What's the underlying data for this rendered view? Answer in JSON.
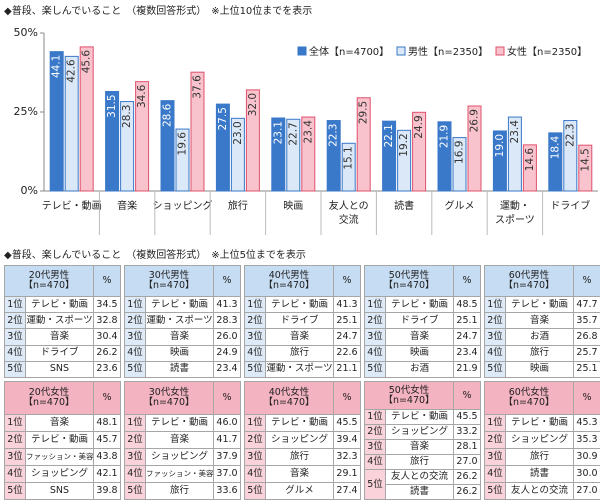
{
  "chart_data": {
    "type": "bar",
    "title": "◆普段、楽しんでいること　（複数回答形式）　※上位10位までを表示",
    "categories": [
      "テレビ・動画",
      "音楽",
      "ショッピング",
      "旅行",
      "映画",
      "友人との\n交流",
      "読書",
      "グルメ",
      "運動・\nスポーツ",
      "ドライブ"
    ],
    "series": [
      {
        "name": "全体【n=4700】",
        "color": "#3a78c9",
        "stroke": "#3a78c9",
        "label_color": "#ffffff",
        "values": [
          44.1,
          31.5,
          28.6,
          27.5,
          23.1,
          22.3,
          22.1,
          21.9,
          19.0,
          18.4
        ],
        "value_labels": [
          "44.1",
          "31.5",
          "28.6",
          "27.5",
          "23.1",
          "22.3",
          "22.1",
          "21.9",
          "19.0",
          "18.4"
        ]
      },
      {
        "name": "男性【n=2350】",
        "color": "#dbe8f7",
        "stroke": "#3a78c9",
        "label_color": "#333333",
        "values": [
          42.6,
          28.3,
          19.6,
          23.0,
          22.7,
          15.1,
          19.2,
          16.9,
          23.4,
          22.3
        ],
        "value_labels": [
          "42.6",
          "28.3",
          "19.6",
          "23.0",
          "22.7",
          "15.1",
          "19.2",
          "16.9",
          "23.4",
          "22.3"
        ]
      },
      {
        "name": "女性【n=2350】",
        "color": "#f8c3cd",
        "stroke": "#e0506c",
        "label_color": "#333333",
        "values": [
          45.6,
          34.6,
          37.6,
          32.0,
          23.4,
          29.5,
          24.9,
          26.9,
          14.6,
          14.5
        ],
        "value_labels": [
          "45.6",
          "34.6",
          "37.6",
          "32.0",
          "23.4",
          "29.5",
          "24.9",
          "26.9",
          "14.6",
          "14.5"
        ]
      }
    ],
    "ylim": [
      0,
      50
    ],
    "yticks": [
      {
        "value": 0,
        "label": "0%"
      },
      {
        "value": 25,
        "label": "25%"
      },
      {
        "value": 50,
        "label": "50%"
      }
    ],
    "grid": false,
    "legend": "top-right"
  },
  "tables_section": {
    "title": "◆普段、楽しんでいること　（複数回答形式）　※上位5位までを表示",
    "tables": [
      {
        "header": "20代男性\n【n=470】",
        "unit": "%",
        "gender": "male",
        "rows": [
          {
            "rank": "1位",
            "entries": [
              {
                "item": "テレビ・動画",
                "value": "34.5"
              }
            ]
          },
          {
            "rank": "2位",
            "entries": [
              {
                "item": "運動・スポーツ",
                "value": "32.8"
              }
            ]
          },
          {
            "rank": "3位",
            "entries": [
              {
                "item": "音楽",
                "value": "30.4"
              }
            ]
          },
          {
            "rank": "4位",
            "entries": [
              {
                "item": "ドライブ",
                "value": "26.2"
              }
            ]
          },
          {
            "rank": "5位",
            "entries": [
              {
                "item": "SNS",
                "value": "23.6"
              }
            ]
          }
        ]
      },
      {
        "header": "30代男性\n【n=470】",
        "unit": "%",
        "gender": "male",
        "rows": [
          {
            "rank": "1位",
            "entries": [
              {
                "item": "テレビ・動画",
                "value": "41.3"
              }
            ]
          },
          {
            "rank": "2位",
            "entries": [
              {
                "item": "運動・スポーツ",
                "value": "28.3"
              }
            ]
          },
          {
            "rank": "3位",
            "entries": [
              {
                "item": "音楽",
                "value": "26.0"
              }
            ]
          },
          {
            "rank": "4位",
            "entries": [
              {
                "item": "映画",
                "value": "24.9"
              }
            ]
          },
          {
            "rank": "5位",
            "entries": [
              {
                "item": "読書",
                "value": "23.4"
              }
            ]
          }
        ]
      },
      {
        "header": "40代男性\n【n=470】",
        "unit": "%",
        "gender": "male",
        "rows": [
          {
            "rank": "1位",
            "entries": [
              {
                "item": "テレビ・動画",
                "value": "41.3"
              }
            ]
          },
          {
            "rank": "2位",
            "entries": [
              {
                "item": "ドライブ",
                "value": "25.1"
              }
            ]
          },
          {
            "rank": "3位",
            "entries": [
              {
                "item": "音楽",
                "value": "24.7"
              }
            ]
          },
          {
            "rank": "4位",
            "entries": [
              {
                "item": "旅行",
                "value": "22.6"
              }
            ]
          },
          {
            "rank": "5位",
            "entries": [
              {
                "item": "運動・スポーツ",
                "value": "21.1"
              }
            ]
          }
        ]
      },
      {
        "header": "50代男性\n【n=470】",
        "unit": "%",
        "gender": "male",
        "rows": [
          {
            "rank": "1位",
            "entries": [
              {
                "item": "テレビ・動画",
                "value": "48.5"
              }
            ]
          },
          {
            "rank": "2位",
            "entries": [
              {
                "item": "ドライブ",
                "value": "25.1"
              }
            ]
          },
          {
            "rank": "3位",
            "entries": [
              {
                "item": "音楽",
                "value": "24.7"
              }
            ]
          },
          {
            "rank": "4位",
            "entries": [
              {
                "item": "映画",
                "value": "23.4"
              }
            ]
          },
          {
            "rank": "5位",
            "entries": [
              {
                "item": "お酒",
                "value": "21.9"
              }
            ]
          }
        ]
      },
      {
        "header": "60代男性\n【n=470】",
        "unit": "%",
        "gender": "male",
        "rows": [
          {
            "rank": "1位",
            "entries": [
              {
                "item": "テレビ・動画",
                "value": "47.7"
              }
            ]
          },
          {
            "rank": "2位",
            "entries": [
              {
                "item": "音楽",
                "value": "35.7"
              }
            ]
          },
          {
            "rank": "3位",
            "entries": [
              {
                "item": "お酒",
                "value": "26.8"
              }
            ]
          },
          {
            "rank": "4位",
            "entries": [
              {
                "item": "旅行",
                "value": "25.7"
              }
            ]
          },
          {
            "rank": "5位",
            "entries": [
              {
                "item": "映画",
                "value": "25.1"
              }
            ]
          }
        ]
      },
      {
        "header": "20代女性\n【n=470】",
        "unit": "%",
        "gender": "female",
        "rows": [
          {
            "rank": "1位",
            "entries": [
              {
                "item": "音楽",
                "value": "48.1"
              }
            ]
          },
          {
            "rank": "2位",
            "entries": [
              {
                "item": "テレビ・動画",
                "value": "45.7"
              }
            ]
          },
          {
            "rank": "3位",
            "entries": [
              {
                "item": "ファッション・美容",
                "value": "43.8"
              }
            ]
          },
          {
            "rank": "4位",
            "entries": [
              {
                "item": "ショッピング",
                "value": "42.1"
              }
            ]
          },
          {
            "rank": "5位",
            "entries": [
              {
                "item": "SNS",
                "value": "39.8"
              }
            ]
          }
        ]
      },
      {
        "header": "30代女性\n【n=470】",
        "unit": "%",
        "gender": "female",
        "rows": [
          {
            "rank": "1位",
            "entries": [
              {
                "item": "テレビ・動画",
                "value": "46.0"
              }
            ]
          },
          {
            "rank": "2位",
            "entries": [
              {
                "item": "音楽",
                "value": "41.7"
              }
            ]
          },
          {
            "rank": "3位",
            "entries": [
              {
                "item": "ショッピング",
                "value": "37.9"
              }
            ]
          },
          {
            "rank": "4位",
            "entries": [
              {
                "item": "ファッション・美容",
                "value": "37.0"
              }
            ]
          },
          {
            "rank": "5位",
            "entries": [
              {
                "item": "旅行",
                "value": "33.6"
              }
            ]
          }
        ]
      },
      {
        "header": "40代女性\n【n=470】",
        "unit": "%",
        "gender": "female",
        "rows": [
          {
            "rank": "1位",
            "entries": [
              {
                "item": "テレビ・動画",
                "value": "45.5"
              }
            ]
          },
          {
            "rank": "2位",
            "entries": [
              {
                "item": "ショッピング",
                "value": "39.4"
              }
            ]
          },
          {
            "rank": "3位",
            "entries": [
              {
                "item": "旅行",
                "value": "32.3"
              }
            ]
          },
          {
            "rank": "4位",
            "entries": [
              {
                "item": "音楽",
                "value": "29.1"
              }
            ]
          },
          {
            "rank": "5位",
            "entries": [
              {
                "item": "グルメ",
                "value": "27.4"
              }
            ]
          }
        ]
      },
      {
        "header": "50代女性\n【n=470】",
        "unit": "%",
        "gender": "female",
        "rows": [
          {
            "rank": "1位",
            "entries": [
              {
                "item": "テレビ・動画",
                "value": "45.5"
              }
            ]
          },
          {
            "rank": "2位",
            "entries": [
              {
                "item": "ショッピング",
                "value": "33.2"
              }
            ]
          },
          {
            "rank": "3位",
            "entries": [
              {
                "item": "音楽",
                "value": "28.1"
              }
            ]
          },
          {
            "rank": "4位",
            "entries": [
              {
                "item": "旅行",
                "value": "27.0"
              }
            ]
          },
          {
            "rank": "5位",
            "entries": [
              {
                "item": "友人との交流",
                "value": "26.2"
              },
              {
                "item": "読書",
                "value": "26.2"
              }
            ]
          }
        ]
      },
      {
        "header": "60代女性\n【n=470】",
        "unit": "%",
        "gender": "female",
        "rows": [
          {
            "rank": "1位",
            "entries": [
              {
                "item": "テレビ・動画",
                "value": "45.3"
              }
            ]
          },
          {
            "rank": "2位",
            "entries": [
              {
                "item": "ショッピング",
                "value": "35.3"
              }
            ]
          },
          {
            "rank": "3位",
            "entries": [
              {
                "item": "旅行",
                "value": "30.9"
              }
            ]
          },
          {
            "rank": "4位",
            "entries": [
              {
                "item": "読書",
                "value": "30.0"
              }
            ]
          },
          {
            "rank": "5位",
            "entries": [
              {
                "item": "友人との交流",
                "value": "27.0"
              }
            ]
          }
        ]
      }
    ]
  }
}
